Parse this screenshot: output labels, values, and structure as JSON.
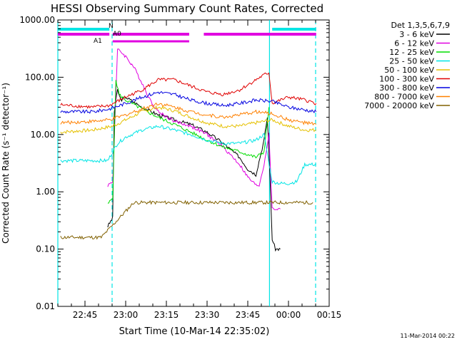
{
  "chart_data": {
    "type": "line",
    "title": "HESSI Observing Summary Count Rates, Corrected",
    "xlabel": "Start Time (10-Mar-14 22:35:02)",
    "ylabel": "Corrected Count Rate (s⁻¹ detector⁻¹)",
    "y_scale": "log",
    "ylim": [
      0.01,
      1000
    ],
    "xlim": [
      "22:35",
      "00:15"
    ],
    "x_ticks": [
      "22:45",
      "23:00",
      "23:15",
      "23:30",
      "23:45",
      "00:00",
      "00:15"
    ],
    "y_ticks": [
      "0.01",
      "0.10",
      "1.00",
      "10.00",
      "100.00",
      "1000.00"
    ],
    "legend_title": "Det 1,3,5,6,7,9",
    "legend_position": "right",
    "timestamp": "11-Mar-2014 00:22",
    "state_labels": [
      "N",
      "A1",
      "A0"
    ],
    "state_colors": {
      "night": "#00e5e5",
      "attenuator": "#e000e0"
    },
    "night_markers": [
      "22:35",
      "22:55",
      "23:53",
      "00:10"
    ],
    "night_bars": [
      [
        22.583,
        22.9
      ],
      [
        23.9,
        24.17
      ]
    ],
    "attenuator_bars": [
      [
        22.583,
        22.9
      ],
      [
        22.92,
        23.39
      ],
      [
        23.48,
        24.17
      ]
    ],
    "attenuator_dots": [
      23.1
    ],
    "series": [
      {
        "name": "3 - 6 keV",
        "color": "#000000",
        "x": [
          22.89,
          22.92,
          22.93,
          22.95,
          22.97,
          23.0,
          23.1,
          23.2,
          23.3,
          23.4,
          23.5,
          23.6,
          23.7,
          23.75,
          23.8,
          23.85,
          23.87,
          23.88,
          23.9,
          23.92,
          23.95
        ],
        "y": [
          0.25,
          0.35,
          25,
          60,
          40,
          45,
          30,
          22,
          18,
          15,
          11,
          7,
          4,
          2.5,
          2,
          8,
          20,
          5,
          0.15,
          0.1,
          0.1
        ]
      },
      {
        "name": "6 - 12 keV",
        "color": "#e000e0",
        "x": [
          22.89,
          22.92,
          22.95,
          22.97,
          23.0,
          23.05,
          23.1,
          23.15,
          23.2,
          23.3,
          23.4,
          23.5,
          23.6,
          23.7,
          23.75,
          23.8,
          23.82,
          23.85,
          23.88,
          23.9,
          23.92,
          23.95
        ],
        "y": [
          1.3,
          1.5,
          300,
          280,
          230,
          150,
          80,
          40,
          25,
          17,
          14,
          10,
          6,
          3,
          1.8,
          1.3,
          1.3,
          3,
          10,
          0.5,
          0.5,
          0.5
        ]
      },
      {
        "name": "12 - 25 keV",
        "color": "#00dd00",
        "x": [
          22.89,
          22.92,
          22.94,
          22.96,
          23.0,
          23.1,
          23.2,
          23.3,
          23.4,
          23.5,
          23.6,
          23.7,
          23.8,
          23.85,
          23.88
        ],
        "y": [
          0.6,
          0.8,
          90,
          50,
          40,
          28,
          20,
          15,
          11,
          8,
          6,
          5,
          4,
          5,
          30
        ]
      },
      {
        "name": "25 - 50 keV",
        "color": "#00e5e5",
        "x": [
          22.6,
          22.8,
          22.89,
          22.92,
          22.95,
          23.0,
          23.1,
          23.2,
          23.3,
          23.4,
          23.5,
          23.6,
          23.7,
          23.8,
          23.85,
          23.9,
          23.95,
          24.0,
          24.05,
          24.1,
          24.17
        ],
        "y": [
          3.5,
          3.5,
          3.5,
          5,
          7,
          9,
          12,
          14,
          12,
          10,
          8,
          7,
          7,
          8,
          10,
          1.5,
          1.4,
          1.4,
          1.5,
          3,
          3
        ]
      },
      {
        "name": "50 - 100 keV",
        "color": "#e5c000",
        "x": [
          22.6,
          22.8,
          22.92,
          23.0,
          23.1,
          23.2,
          23.3,
          23.4,
          23.5,
          23.6,
          23.7,
          23.8,
          23.9,
          24.0,
          24.1,
          24.17
        ],
        "y": [
          11,
          12,
          14,
          18,
          25,
          30,
          26,
          20,
          16,
          14,
          14,
          16,
          18,
          14,
          12,
          12
        ]
      },
      {
        "name": "100 - 300 keV",
        "color": "#e00000",
        "x": [
          22.6,
          22.8,
          22.9,
          23.0,
          23.1,
          23.2,
          23.3,
          23.4,
          23.5,
          23.6,
          23.7,
          23.8,
          23.85,
          23.88,
          23.9,
          24.0,
          24.1,
          24.17
        ],
        "y": [
          33,
          30,
          32,
          45,
          60,
          90,
          90,
          70,
          55,
          50,
          60,
          90,
          110,
          120,
          35,
          45,
          40,
          35
        ]
      },
      {
        "name": "300 - 800 keV",
        "color": "#0000e0",
        "x": [
          22.6,
          22.8,
          22.9,
          23.0,
          23.1,
          23.2,
          23.3,
          23.4,
          23.5,
          23.6,
          23.7,
          23.8,
          23.9,
          24.0,
          24.1,
          24.17
        ],
        "y": [
          25,
          25,
          28,
          35,
          45,
          55,
          50,
          40,
          35,
          32,
          35,
          40,
          38,
          30,
          27,
          25
        ]
      },
      {
        "name": "800 - 7000 keV",
        "color": "#ff8000",
        "x": [
          22.6,
          22.8,
          22.9,
          23.0,
          23.1,
          23.2,
          23.3,
          23.4,
          23.5,
          23.6,
          23.7,
          23.8,
          23.9,
          24.0,
          24.1,
          24.17
        ],
        "y": [
          16,
          17,
          18,
          22,
          28,
          35,
          30,
          25,
          22,
          20,
          22,
          25,
          23,
          18,
          16,
          15
        ]
      },
      {
        "name": "7000 - 20000 keV",
        "color": "#806000",
        "x": [
          22.6,
          22.85,
          23.05,
          23.15,
          24.05,
          24.15
        ],
        "y": [
          0.16,
          0.16,
          0.65,
          0.65,
          0.65,
          0.65
        ]
      }
    ]
  }
}
